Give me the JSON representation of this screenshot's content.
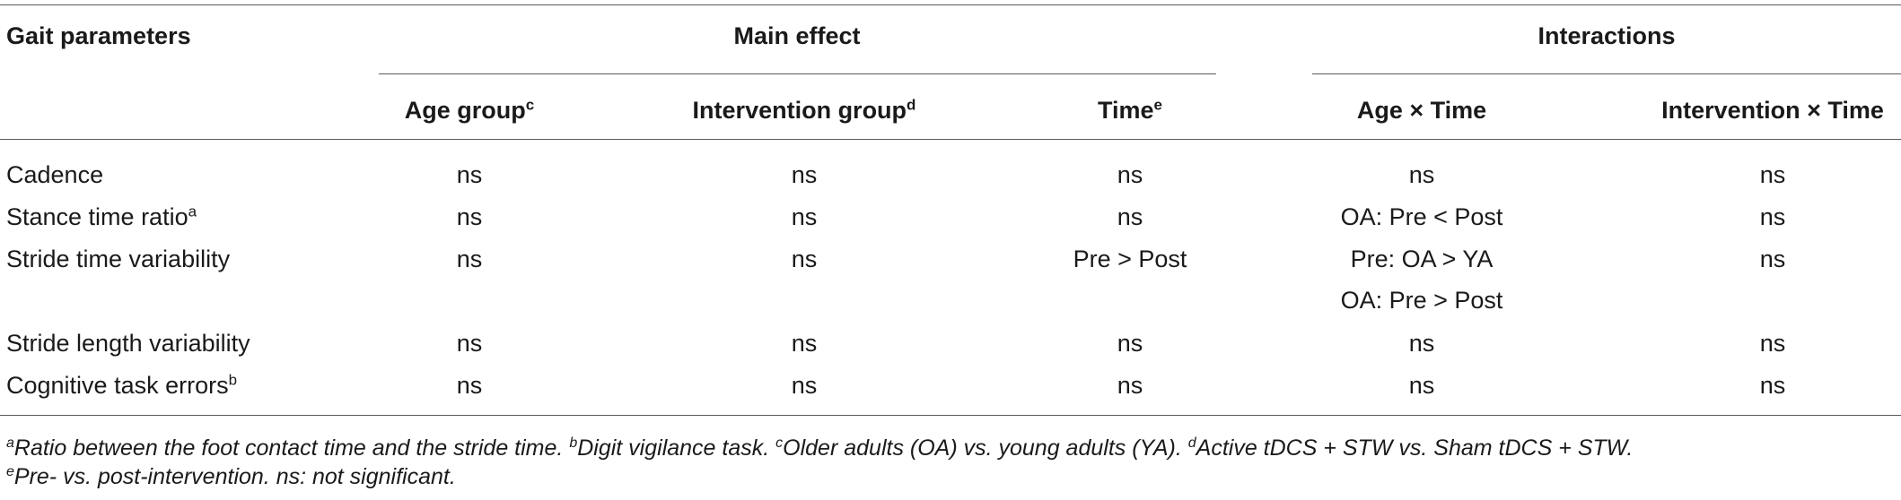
{
  "header": {
    "gait_parameters": "Gait parameters",
    "main_effect": "Main effect",
    "interactions": "Interactions",
    "columns": [
      {
        "label": "Age group",
        "sup": "c"
      },
      {
        "label": "Intervention group",
        "sup": "d"
      },
      {
        "label": "Time",
        "sup": "e"
      },
      {
        "label": "Age × Time",
        "sup": ""
      },
      {
        "label": "Intervention × Time",
        "sup": ""
      }
    ]
  },
  "rows": [
    {
      "label": "Cadence",
      "sup": "",
      "values": [
        "ns",
        "ns",
        "ns",
        "ns",
        "ns"
      ]
    },
    {
      "label": "Stance time ratio",
      "sup": "a",
      "values": [
        "ns",
        "ns",
        "ns",
        "OA: Pre < Post",
        "ns"
      ]
    },
    {
      "label": "Stride time variability",
      "sup": "",
      "values": [
        "ns",
        "ns",
        "Pre > Post",
        "Pre: OA > YA",
        "ns"
      ],
      "extra": "OA: Pre > Post"
    },
    {
      "label": "Stride length variability",
      "sup": "",
      "values": [
        "ns",
        "ns",
        "ns",
        "ns",
        "ns"
      ]
    },
    {
      "label": "Cognitive task errors",
      "sup": "b",
      "values": [
        "ns",
        "ns",
        "ns",
        "ns",
        "ns"
      ]
    }
  ],
  "footnotes": {
    "line1": [
      {
        "sup": "a",
        "text": "Ratio between the foot contact time and the stride time. "
      },
      {
        "sup": "b",
        "text": "Digit vigilance task. "
      },
      {
        "sup": "c",
        "text": "Older adults (OA) vs. young adults (YA). "
      },
      {
        "sup": "d",
        "text": "Active tDCS + STW vs. Sham tDCS + STW."
      }
    ],
    "line2": [
      {
        "sup": "e",
        "text": "Pre- vs. post-intervention. ns: not significant."
      }
    ]
  }
}
